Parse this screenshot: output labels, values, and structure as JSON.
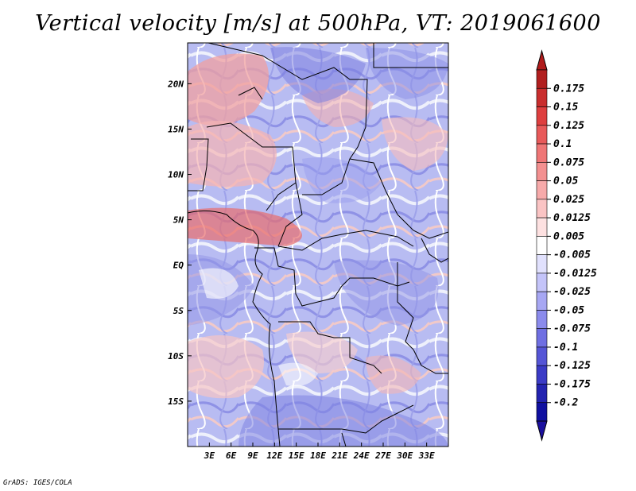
{
  "title": "Vertical velocity [m/s] at 500hPa, VT: 2019061600",
  "credit": "GrADS: IGES/COLA",
  "map": {
    "lon_range": [
      0,
      36
    ],
    "lat_range": [
      -20,
      24.5
    ],
    "x_ticks": [
      "3E",
      "6E",
      "9E",
      "12E",
      "15E",
      "18E",
      "21E",
      "24E",
      "27E",
      "30E",
      "33E"
    ],
    "x_tick_values": [
      3,
      6,
      9,
      12,
      15,
      18,
      21,
      24,
      27,
      30,
      33
    ],
    "y_ticks": [
      "20N",
      "15N",
      "10N",
      "5N",
      "EQ",
      "5S",
      "10S",
      "15S"
    ],
    "y_tick_values": [
      20,
      15,
      10,
      5,
      0,
      -5,
      -10,
      -15
    ]
  },
  "colorbar": {
    "labels": [
      "0.175",
      "0.15",
      "0.125",
      "0.1",
      "0.075",
      "0.05",
      "0.025",
      "0.0125",
      "0.005",
      "-0.005",
      "-0.0125",
      "-0.025",
      "-0.05",
      "-0.075",
      "-0.1",
      "-0.125",
      "-0.175",
      "-0.2"
    ],
    "colors": [
      "#b11f1f",
      "#c92e2e",
      "#de3f3f",
      "#e85a5a",
      "#ef7676",
      "#f39090",
      "#f7aaaa",
      "#fac4c4",
      "#fde1e1",
      "#ffffff",
      "#e1e1fd",
      "#c4c4f9",
      "#a7a7f3",
      "#8b8bec",
      "#6f6fe2",
      "#5555d6",
      "#3b3bc6",
      "#2323b0",
      "#1010a0"
    ],
    "top_arrow_color": "#b01b1b",
    "bottom_arrow_color": "#1a0f9e"
  }
}
